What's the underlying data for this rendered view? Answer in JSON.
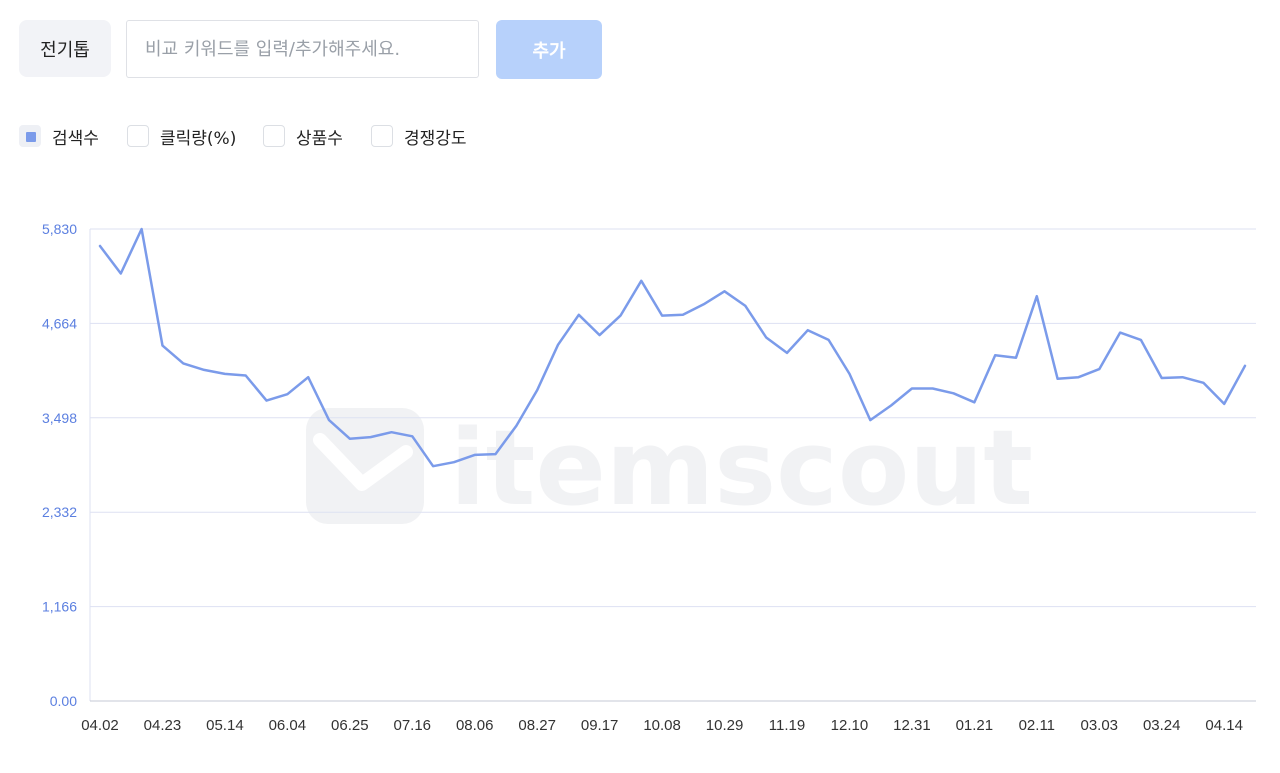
{
  "toolbar": {
    "keyword_chip": "전기톱",
    "search_placeholder": "비교 키워드를 입력/추가해주세요.",
    "search_value": "",
    "add_label": "추가"
  },
  "legend": {
    "items": [
      {
        "label": "검색수",
        "checked": true
      },
      {
        "label": "클릭량(%)",
        "checked": false
      },
      {
        "label": "상품수",
        "checked": false
      },
      {
        "label": "경쟁강도",
        "checked": false
      }
    ]
  },
  "watermark": "itemscout",
  "colors": {
    "line": "#7b9bea",
    "axis_label": "#5b7fe0",
    "grid": "#dde1f2",
    "add_button": "#b7d1fb"
  },
  "chart_data": {
    "type": "line",
    "series": [
      {
        "name": "검색수",
        "values": [
          5620,
          5280,
          5830,
          4390,
          4170,
          4090,
          4040,
          4020,
          3710,
          3790,
          4000,
          3470,
          3240,
          3260,
          3320,
          3270,
          2900,
          2950,
          3040,
          3050,
          3400,
          3840,
          4400,
          4770,
          4520,
          4760,
          5190,
          4760,
          4770,
          4900,
          5060,
          4880,
          4490,
          4300,
          4580,
          4460,
          4040,
          3470,
          3650,
          3860,
          3860,
          3800,
          3690,
          4270,
          4240,
          5000,
          3980,
          4000,
          4100,
          4550,
          4460,
          3990,
          4000,
          3930,
          3670,
          4140
        ]
      }
    ],
    "x_tick_labels": [
      "04.02",
      "04.23",
      "05.14",
      "06.04",
      "06.25",
      "07.16",
      "08.06",
      "08.27",
      "09.17",
      "10.08",
      "10.29",
      "11.19",
      "12.10",
      "12.31",
      "01.21",
      "02.11",
      "03.03",
      "03.24",
      "04.14"
    ],
    "y_tick_labels": [
      "0.00",
      "1,166",
      "2,332",
      "3,498",
      "4,664",
      "5,830"
    ],
    "ylim": [
      0,
      5830
    ],
    "grid": true
  }
}
